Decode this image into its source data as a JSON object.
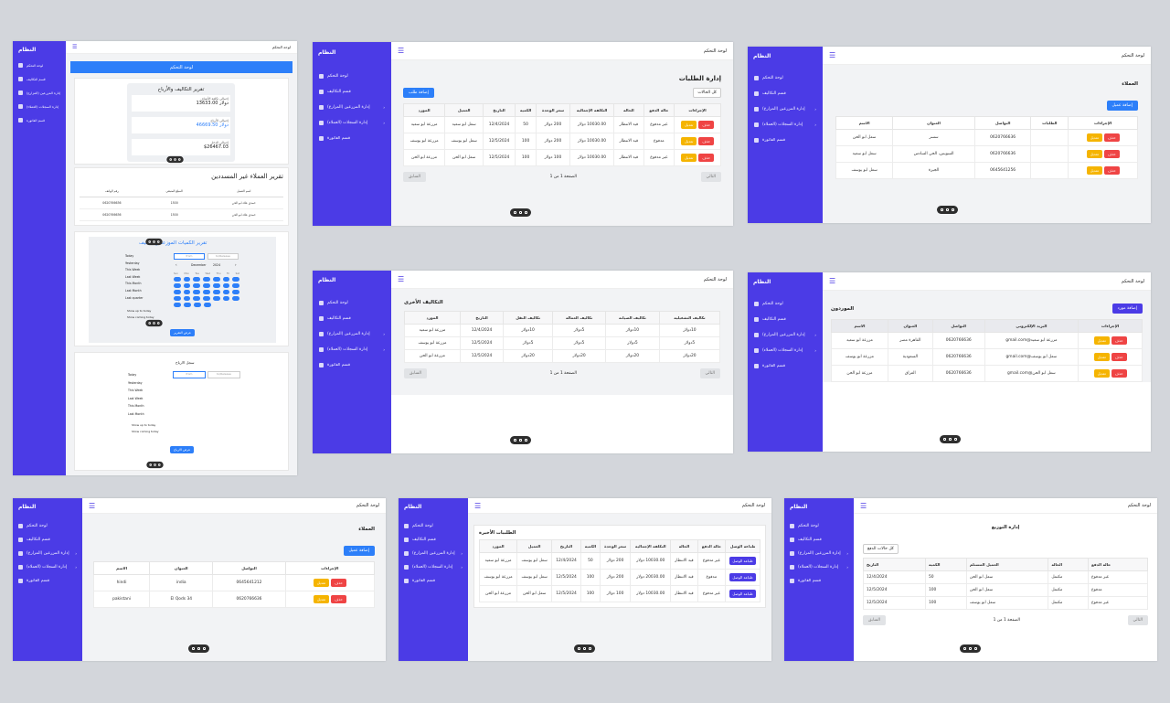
{
  "brand": "النظام",
  "dashboard_title": "لوحة التحكم",
  "nav": [
    "لوحة التحكم",
    "قسم التكاليف",
    "إدارة المزرعين (المزارع)",
    "إدارة السجلات (العملاء)",
    "قسم الفاتورة"
  ],
  "tile1": {
    "header": "لوحة التحكم",
    "profit_title": "تقرير التكاليف والأرباح",
    "stats": [
      {
        "label": "إجمالي تكلفة الأصناف",
        "value": "13633.00 دولار"
      },
      {
        "label": "إجمالي الأرباح",
        "value": "46669.50 دولار"
      },
      {
        "label": "إجمالي الدخل",
        "value": "$26467.03"
      }
    ],
    "clients_title": "تقرير العملاء غير المسددين",
    "clients_cols": [
      "اسم العميل",
      "المبلغ المتبقي",
      "رقم الهاتف"
    ],
    "clients_rows": [
      [
        "حمدي علاء ابو الحن",
        "1500",
        "0620766636"
      ],
      [
        "حمدي علاء ابو الحن",
        "1500",
        "0620766636"
      ]
    ],
    "dist_title": "تقرير الكميات الموزعة والتكاليف",
    "filter_btn": "عرض التقرير",
    "dist2_title": "سجل الارباح",
    "filter_btn2": "عرض الارباح",
    "dp_labels": [
      "Today",
      "Yesterday",
      "This Week",
      "Last Week",
      "This Month",
      "Last Month",
      "Last quarter"
    ],
    "dp_from": "from",
    "dp_to": "to/Release",
    "dp_month": "December",
    "dp_year": "2024",
    "dp_wd": [
      "Sun",
      "Mon",
      "Tue",
      "Wed",
      "Thu",
      "Fri",
      "Sat"
    ],
    "dp_opts": [
      "Show up to today",
      "Show coming today"
    ]
  },
  "orders": {
    "title": "إدارة الطلبات",
    "add": "إضافة طلب",
    "filter": "كل الحالات",
    "cols": [
      "الإجراءات",
      "حالة الدفع",
      "الحالة",
      "التكلفة الإجمالية",
      "سعر الوحدة",
      "الكمية",
      "التاريخ",
      "العميل",
      "المورد"
    ],
    "rows": [
      [
        "غير مدفوع",
        "قيد الانتظار",
        "10030.00 دولار",
        "200 دولار",
        "50",
        "12/4/2024",
        "سعل ابو سعيد",
        "مزرعة ابو سعيد"
      ],
      [
        "مدفوع",
        "قيد الانتظار",
        "10030.00 دولار",
        "200 دولار",
        "100",
        "12/5/2024",
        "سعل ابو يوسف",
        "مزرعة ابو يوسف"
      ],
      [
        "غير مدفوع",
        "قيد الانتظار",
        "10030.00 دولار",
        "100 دولار",
        "100",
        "12/5/2024",
        "سعل ابو الحن",
        "مزرعة ابو الحن"
      ]
    ],
    "edit": "تعديل",
    "del": "حذف",
    "page": "الصفحة 1 من 1",
    "prev": "السابق",
    "next": "التالي"
  },
  "clients": {
    "title": "العملاء",
    "add": "إضافة عميل",
    "cols": [
      "الإجراءات",
      "الطلبات",
      "التواصل",
      "العنوان",
      "الاسم"
    ],
    "rows": [
      [
        "",
        "0620766636",
        "سسر",
        "سعل ابو الحن"
      ],
      [
        "",
        "0620766636",
        "السويس، الحي السادس",
        "سعل ابو سعيد"
      ],
      [
        "",
        "0645641256",
        "الجيزة",
        "سعل ابو يوسف"
      ]
    ]
  },
  "costs": {
    "title": "التكاليف الأخرى",
    "cols": [
      "تكاليف التشغيلية",
      "تكاليف الصيانة",
      "تكاليف العمالة",
      "تكاليف النقل",
      "التاريخ",
      "المورد"
    ],
    "rows": [
      [
        "10دولار",
        "10دولار",
        "5دولار",
        "10دولار",
        "12/4/2024",
        "مزرعة ابو سعيد"
      ],
      [
        "5دولار",
        "5دولار",
        "5دولار",
        "5دولار",
        "12/5/2024",
        "مزرعة ابو يوسف"
      ],
      [
        "20دولار",
        "20دولار",
        "20دولار",
        "20دولار",
        "12/5/2024",
        "مزرعة ابو الحن"
      ]
    ],
    "page": "الصفحة 1 من 1"
  },
  "suppliers": {
    "title": "الموردون",
    "add": "إضافة مورد",
    "cols": [
      "الإجراءات",
      "البريد الإلكتروني",
      "التواصل",
      "العنوان",
      "الاسم"
    ],
    "rows": [
      [
        "مزرعة ابو سعيد@gmail.com",
        "0620766636",
        "القاهرة مصر",
        "مزرعة ابو سعيد"
      ],
      [
        "سعل ابو يوسف@gmail.com",
        "0620766636",
        "السعودية",
        "مزرعة ابو يوسف"
      ],
      [
        "سعل ابو الحن@gmail.com",
        "0620766636",
        "العراق",
        "مزرعة ابو الحن"
      ]
    ]
  },
  "clients2": {
    "title": "العملاء",
    "add": "إضافة عميل",
    "cols": [
      "الإجراءات",
      "التواصل",
      "العنوان",
      "الاسم"
    ],
    "rows": [
      [
        "0645641212",
        "india",
        "hindi"
      ],
      [
        "0620766636",
        "34 El Qods",
        "pakistani"
      ]
    ]
  },
  "latest": {
    "title": "الطلبيات الأخيرة",
    "cols": [
      "طباعة الوصل",
      "حالة الدفع",
      "الحالة",
      "التكلفة الإجمالية",
      "سعر الوحدة",
      "الكمية",
      "التاريخ",
      "العميل",
      "المورد"
    ],
    "rows": [
      [
        "غير مدفوع",
        "قيد الانتظار",
        "10030.00 دولار",
        "200 دولار",
        "50",
        "12/4/2024",
        "سعل ابو يوسف",
        "مزرعة ابو سعيد"
      ],
      [
        "مدفوع",
        "قيد الانتظار",
        "20030.00 دولار",
        "200 دولار",
        "100",
        "12/5/2024",
        "سعل ابو يوسف",
        "مزرعة ابو يوسف"
      ],
      [
        "غير مدفوع",
        "قيد الانتظار",
        "10030.00 دولار",
        "100 دولار",
        "100",
        "12/5/2024",
        "سعل ابو الحن",
        "مزرعة ابو الحن"
      ]
    ],
    "print": "طباعة الوصل"
  },
  "dist": {
    "title": "إدارة التوزيع",
    "filter": "كل حالات الدفع",
    "cols": [
      "التاريخ",
      "الكمية",
      "العميل المستلم",
      "الحالة",
      "حالة الدفع"
    ],
    "rows": [
      [
        "12/4/2024",
        "50",
        "سعل ابو الحن",
        "مكتمل",
        "غير مدفوع"
      ],
      [
        "12/5/2024",
        "100",
        "سعل ابو الحن",
        "مكتمل",
        "مدفوع"
      ],
      [
        "12/5/2024",
        "100",
        "سعل ابو يوسف",
        "مكتمل",
        "غير مدفوع"
      ]
    ],
    "page": "الصفحة 1 من 1",
    "prev": "السابق",
    "next": "التالي"
  }
}
